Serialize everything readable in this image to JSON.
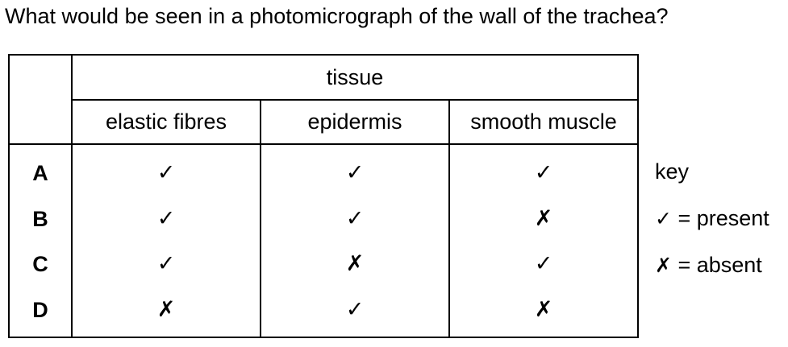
{
  "question": "What would be seen in a photomicrograph of the wall of the trachea?",
  "table": {
    "group_header": "tissue",
    "columns": [
      "elastic fibres",
      "epidermis",
      "smooth muscle"
    ],
    "rows": [
      {
        "label": "A",
        "marks": [
          "✓",
          "✓",
          "✓"
        ]
      },
      {
        "label": "B",
        "marks": [
          "✓",
          "✓",
          "✗"
        ]
      },
      {
        "label": "C",
        "marks": [
          "✓",
          "✗",
          "✓"
        ]
      },
      {
        "label": "D",
        "marks": [
          "✗",
          "✓",
          "✗"
        ]
      }
    ]
  },
  "key": {
    "title": "key",
    "present_symbol": "✓",
    "present_text": "= present",
    "absent_symbol": "✗",
    "absent_text": "= absent"
  }
}
